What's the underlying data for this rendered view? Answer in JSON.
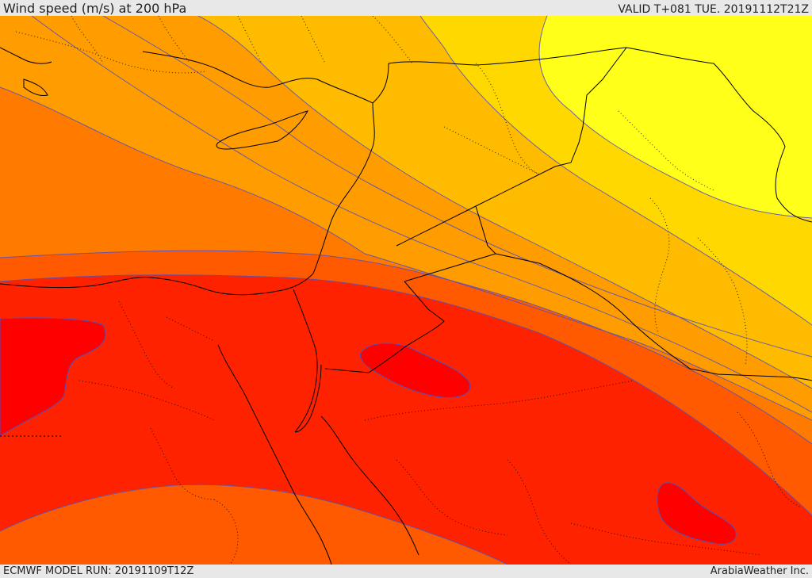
{
  "header": {
    "title": "Wind speed (m/s) at 200 hPa",
    "valid_time": "VALID T+081 TUE. 20191112T21Z"
  },
  "footer": {
    "model_run": "ECMWF MODEL RUN: 20191109T12Z",
    "credit": "ArabiaWeather Inc."
  },
  "colors": {
    "band_yellow": "#ffff1a",
    "band_gold": "#ffd800",
    "band_amber": "#ffbb00",
    "band_light_orange": "#ff9c00",
    "band_orange": "#ff7b00",
    "band_red_orange": "#ff5a00",
    "band_red": "#ff2200",
    "band_core": "#ff0000",
    "contour": "#5050c0",
    "border": "#000000"
  }
}
